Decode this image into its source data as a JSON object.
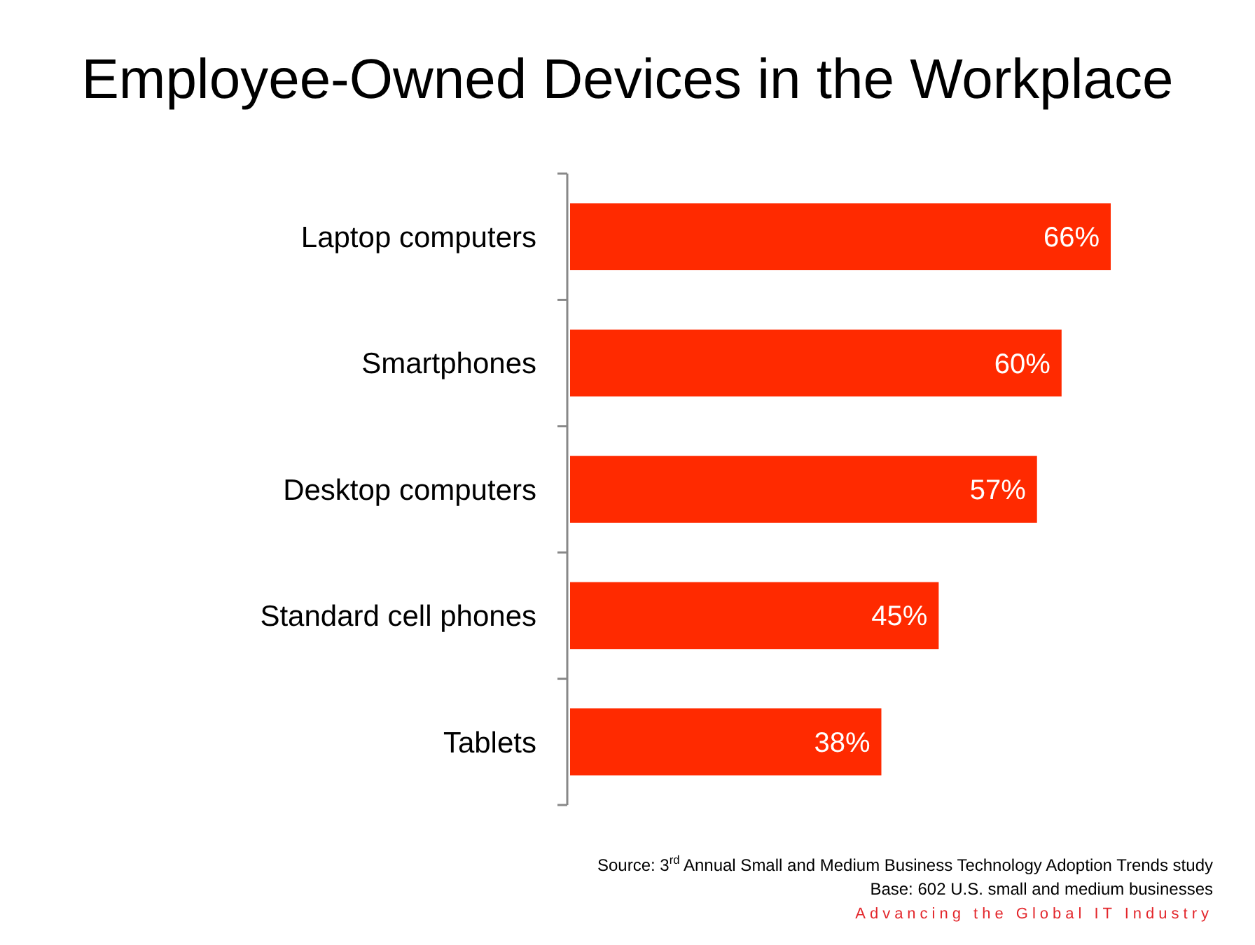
{
  "chart_data": {
    "type": "bar",
    "orientation": "horizontal",
    "title": "Employee-Owned Devices in the Workplace",
    "categories": [
      "Laptop computers",
      "Smartphones",
      "Desktop computers",
      "Standard cell phones",
      "Tablets"
    ],
    "values": [
      66,
      60,
      57,
      45,
      38
    ],
    "value_labels": [
      "66%",
      "60%",
      "57%",
      "45%",
      "38%"
    ],
    "color": "#ff2a00",
    "tick_labels": "y",
    "annotations": [
      "Source: 3$^{rd}$ Annual Small and Medium Business Technology Adoption Trends study",
      "Base: 602 U.S. small and medium businesses",
      "Advancing the Global IT Industry"
    ]
  }
}
